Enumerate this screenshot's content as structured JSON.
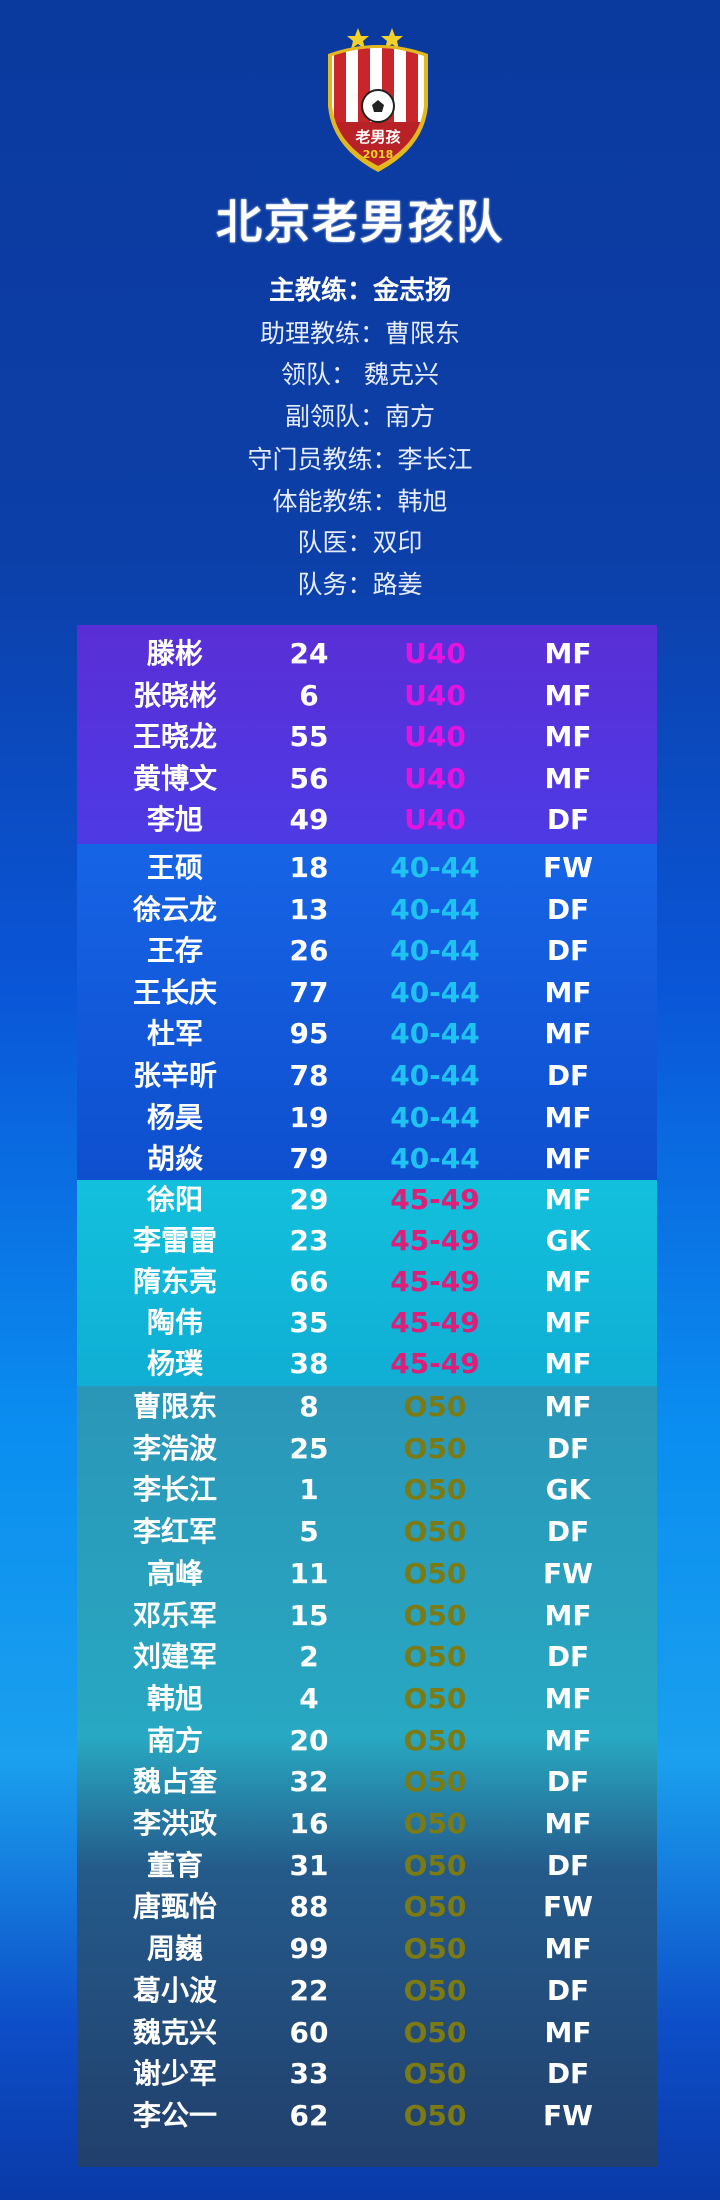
{
  "logo": {
    "text": "老男孩",
    "year": "2018",
    "stars": 2
  },
  "title": "北京老男孩队",
  "staff": [
    "主教练：金志扬",
    "助理教练：曹限东",
    "领队：  魏克兴",
    "副领队：南方",
    "守门员教练：李长江",
    "体能教练：韩旭",
    "队医：双印",
    "队务：路姜"
  ],
  "colors": {
    "u40_bg": "#5533dc",
    "u40_text": "#e513e0",
    "g4044_bg": "#0f58dc",
    "g4044_text": "#1ec3f2",
    "g4549_bg": "#12b6d6",
    "g4549_text": "#dc1f78",
    "o50_bg": "#2890b4",
    "o50_text": "#7c7a12"
  },
  "groups": [
    {
      "group": "U40",
      "players": [
        [
          "滕彬",
          "24",
          "MF"
        ],
        [
          "张晓彬",
          "6",
          "MF"
        ],
        [
          "王晓龙",
          "55",
          "MF"
        ],
        [
          "黄博文",
          "56",
          "MF"
        ],
        [
          "李旭",
          "49",
          "DF"
        ]
      ]
    },
    {
      "group": "40-44",
      "players": [
        [
          "王硕",
          "18",
          "FW"
        ],
        [
          "徐云龙",
          "13",
          "DF"
        ],
        [
          "王存",
          "26",
          "DF"
        ],
        [
          "王长庆",
          "77",
          "MF"
        ],
        [
          "杜军",
          "95",
          "MF"
        ],
        [
          "张辛昕",
          "78",
          "DF"
        ],
        [
          "杨昊",
          "19",
          "MF"
        ],
        [
          "胡焱",
          "79",
          "MF"
        ]
      ]
    },
    {
      "group": "45-49",
      "players": [
        [
          "徐阳",
          "29",
          "MF"
        ],
        [
          "李雷雷",
          "23",
          "GK"
        ],
        [
          "隋东亮",
          "66",
          "MF"
        ],
        [
          "陶伟",
          "35",
          "MF"
        ],
        [
          "杨璞",
          "38",
          "MF"
        ]
      ]
    },
    {
      "group": "O50",
      "players": [
        [
          "曹限东",
          "8",
          "MF"
        ],
        [
          "李浩波",
          "25",
          "DF"
        ],
        [
          "李长江",
          "1",
          "GK"
        ],
        [
          "李红军",
          "5",
          "DF"
        ],
        [
          "高峰",
          "11",
          "FW"
        ],
        [
          "邓乐军",
          "15",
          "MF"
        ],
        [
          "刘建军",
          "2",
          "DF"
        ],
        [
          "韩旭",
          "4",
          "MF"
        ],
        [
          "南方",
          "20",
          "MF"
        ],
        [
          "魏占奎",
          "32",
          "DF"
        ],
        [
          "李洪政",
          "16",
          "MF"
        ],
        [
          "董育",
          "31",
          "DF"
        ],
        [
          "唐甄怡",
          "88",
          "FW"
        ],
        [
          "周巍",
          "99",
          "MF"
        ],
        [
          "葛小波",
          "22",
          "DF"
        ],
        [
          "魏克兴",
          "60",
          "MF"
        ],
        [
          "谢少军",
          "33",
          "DF"
        ],
        [
          "李公一",
          "62",
          "FW"
        ]
      ]
    }
  ]
}
